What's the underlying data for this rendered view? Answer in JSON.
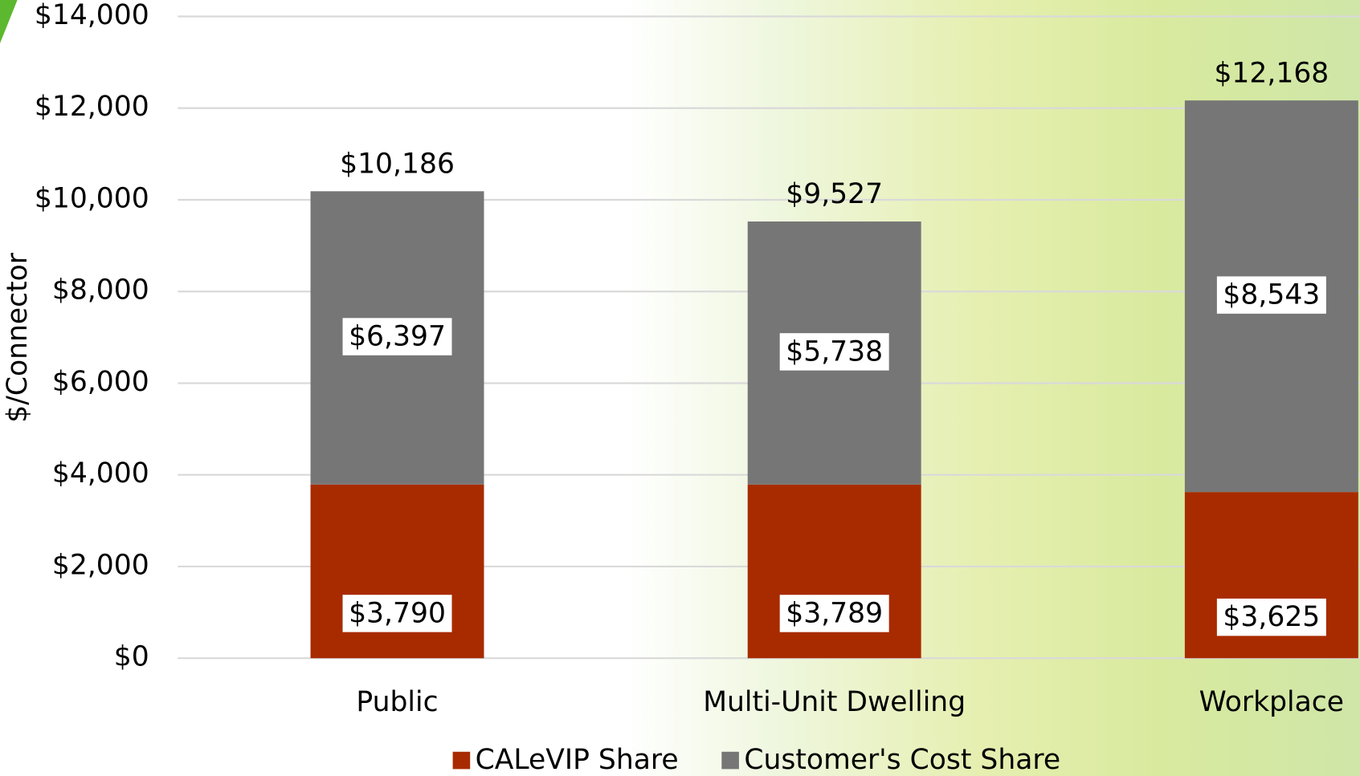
{
  "chart_data": {
    "type": "stacked_bar",
    "categories": [
      "Public",
      "Multi-Unit Dwelling",
      "Workplace"
    ],
    "series": [
      {
        "name": "CALeVIP Share",
        "color": "#a82b00",
        "values": [
          3790,
          3789,
          3625
        ],
        "value_labels": [
          "$3,790",
          "$3,789",
          "$3,625"
        ]
      },
      {
        "name": "Customer's Cost Share",
        "color": "#767676",
        "values": [
          6397,
          5738,
          8543
        ],
        "value_labels": [
          "$6,397",
          "$5,738",
          "$8,543"
        ]
      }
    ],
    "totals": {
      "values": [
        10186,
        9527,
        12168
      ],
      "value_labels": [
        "$10,186",
        "$9,527",
        "$12,168"
      ]
    },
    "ylabel": "$/Connector",
    "ylim": [
      0,
      14000
    ],
    "yticks": [
      {
        "value": 0,
        "label": "$0"
      },
      {
        "value": 2000,
        "label": "$2,000"
      },
      {
        "value": 4000,
        "label": "$4,000"
      },
      {
        "value": 6000,
        "label": "$6,000"
      },
      {
        "value": 8000,
        "label": "$8,000"
      },
      {
        "value": 10000,
        "label": "$10,000"
      },
      {
        "value": 12000,
        "label": "$12,000"
      },
      {
        "value": 14000,
        "label": "$14,000"
      }
    ],
    "grid": true
  }
}
